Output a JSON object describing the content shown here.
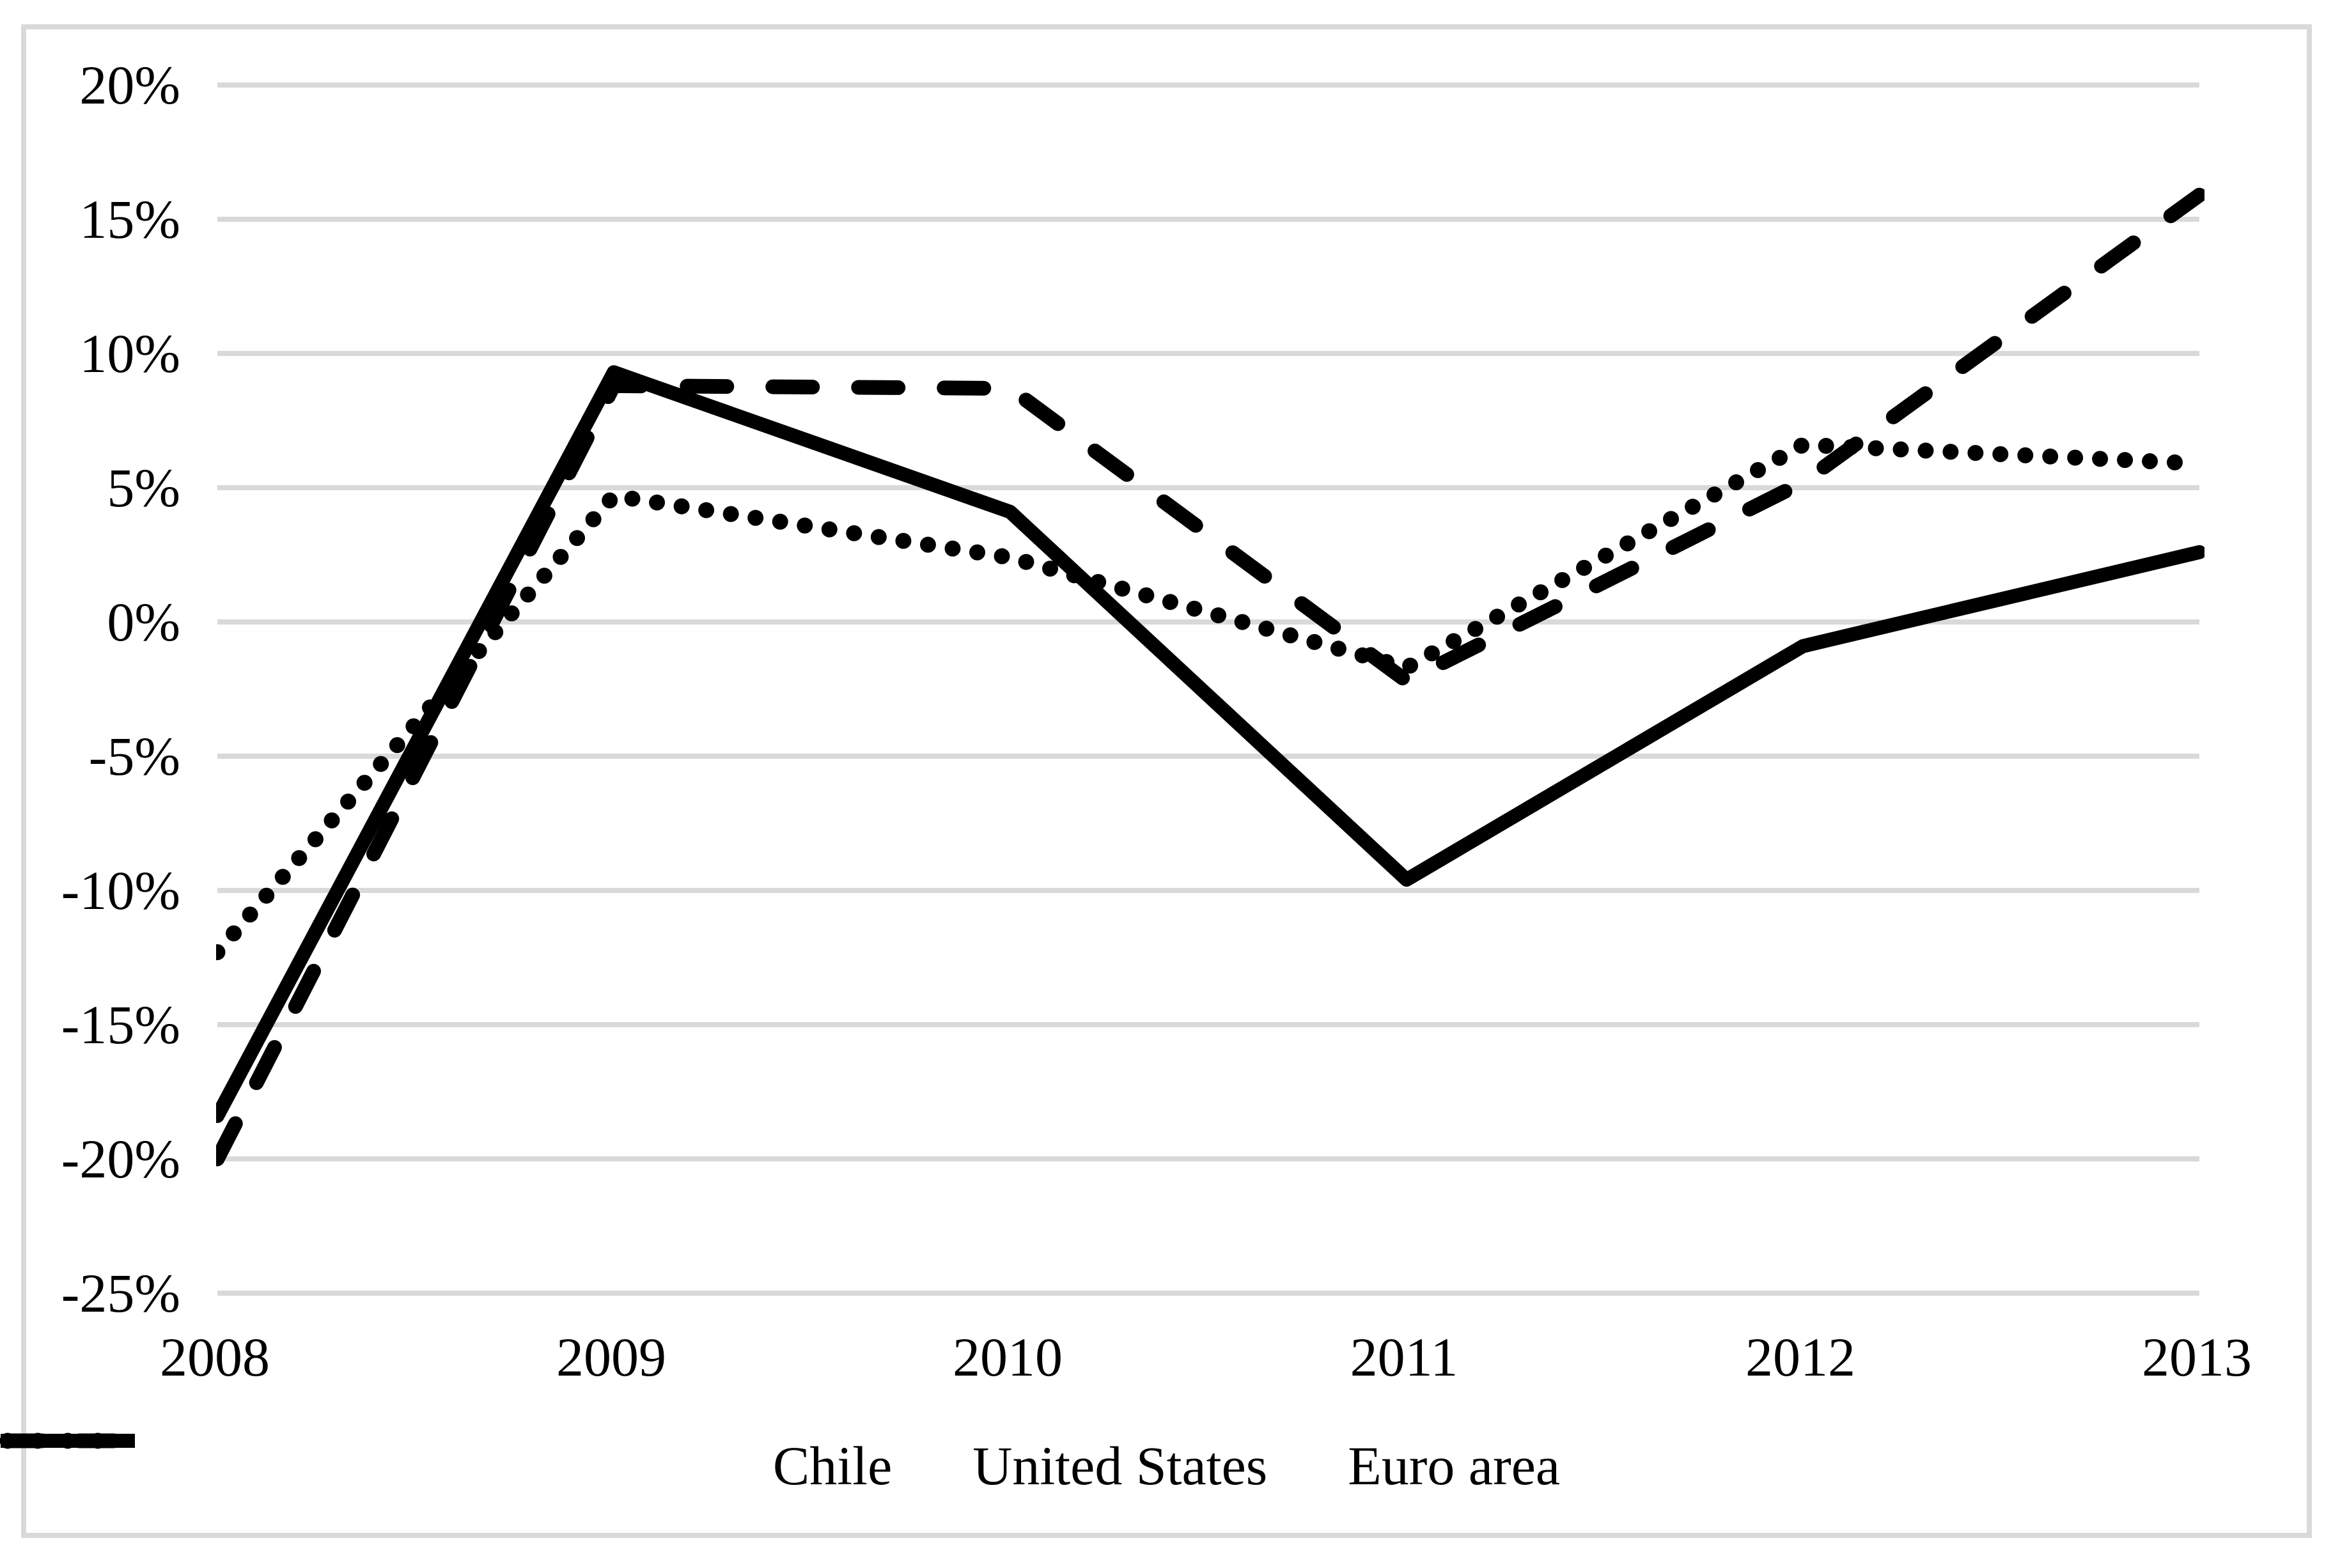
{
  "chart_data": {
    "type": "line",
    "title": "",
    "xlabel": "",
    "ylabel": "",
    "categories": [
      "2008",
      "2009",
      "2010",
      "2011",
      "2012",
      "2013"
    ],
    "series": [
      {
        "name": "Chile",
        "style": "solid",
        "values": [
          -18.4,
          9.3,
          4.1,
          -9.6,
          -0.9,
          2.6
        ]
      },
      {
        "name": "United States",
        "style": "dashed",
        "values": [
          -20.0,
          8.8,
          8.7,
          -2.2,
          5.2,
          15.9
        ]
      },
      {
        "name": "Euro area",
        "style": "dotted",
        "values": [
          -12.3,
          4.7,
          2.4,
          -1.7,
          6.6,
          5.9
        ]
      }
    ],
    "y_axis": {
      "min": -25,
      "max": 20,
      "step": 5,
      "unit": "%",
      "tick_labels": [
        "20%",
        "15%",
        "10%",
        "5%",
        "0%",
        "-5%",
        "-10%",
        "-15%",
        "-20%",
        "-25%"
      ]
    },
    "grid": "horizontal",
    "legend_position": "bottom",
    "colors": {
      "series": "#000000",
      "gridline": "#d9d9d9",
      "border": "#d9d9d9",
      "background": "#ffffff",
      "text": "#000000"
    }
  }
}
